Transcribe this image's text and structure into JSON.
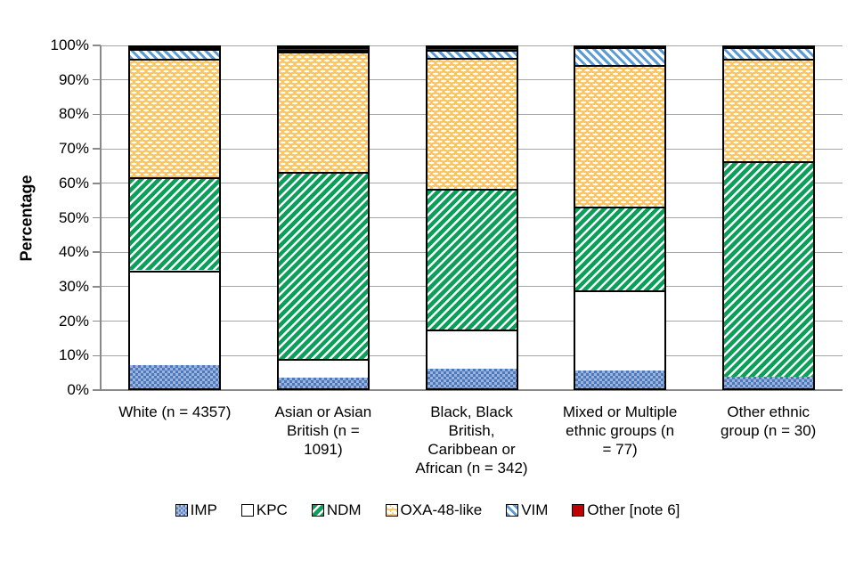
{
  "chart_data": {
    "type": "bar",
    "subtype": "stacked-100",
    "title": "",
    "ylabel": "Percentage",
    "xlabel": "",
    "ylim": [
      0,
      100
    ],
    "grid": true,
    "legend_position": "bottom",
    "yticks": [
      "0%",
      "10%",
      "20%",
      "30%",
      "40%",
      "50%",
      "60%",
      "70%",
      "80%",
      "90%",
      "100%"
    ],
    "categories": [
      {
        "label_lines": [
          "White (n = 4357)"
        ]
      },
      {
        "label_lines": [
          "Asian or Asian",
          "British (n =",
          "1091)"
        ]
      },
      {
        "label_lines": [
          "Black, Black",
          "British,",
          "Caribbean or",
          "African (n = 342)"
        ]
      },
      {
        "label_lines": [
          "Mixed or Multiple",
          "ethnic groups (n",
          "= 77)"
        ]
      },
      {
        "label_lines": [
          "Other ethnic",
          "group (n = 30)"
        ]
      }
    ],
    "series": [
      {
        "name": "IMP",
        "key": "imp",
        "values": [
          6.9,
          3.2,
          5.8,
          5.2,
          3.3
        ]
      },
      {
        "name": "KPC",
        "key": "kpc",
        "values": [
          27.7,
          5.5,
          11.4,
          23.4,
          0
        ]
      },
      {
        "name": "NDM",
        "key": "ndm",
        "values": [
          27.3,
          54.7,
          41.2,
          24.7,
          63.4
        ]
      },
      {
        "name": "OXA-48-like",
        "key": "oxa",
        "values": [
          34.6,
          35.2,
          38.6,
          41.5,
          30.0
        ]
      },
      {
        "name": "VIM",
        "key": "vim",
        "values": [
          3.1,
          0.7,
          2.3,
          5.2,
          3.3
        ]
      },
      {
        "name": "Other [note 6]",
        "key": "other",
        "values": [
          0.4,
          0.7,
          0.7,
          0,
          0
        ]
      }
    ],
    "colors": {
      "imp": "#4d79be",
      "imp_light": "#9db4da",
      "kpc": "#ffffff",
      "ndm": "#0ba05a",
      "oxa": "#fbc45f",
      "vim": "#5b9bd5",
      "other": "#c00000",
      "grid": "#a6a6a6",
      "axis": "#898989",
      "segment_border": "#000000"
    }
  }
}
